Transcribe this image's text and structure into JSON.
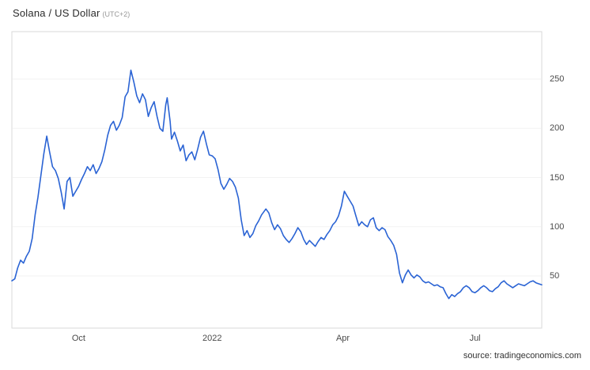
{
  "header": {
    "title": "Solana / US Dollar",
    "timezone": "(UTC+2)"
  },
  "footer": {
    "source": "source: tradingeconomics.com"
  },
  "chart_data": {
    "type": "line",
    "title": "Solana / US Dollar",
    "series_name": "Solana / US Dollar",
    "x_range": [
      "2021-08-16",
      "2022-08-16"
    ],
    "ylim": [
      0,
      300
    ],
    "yticks": [
      50,
      100,
      150,
      200,
      250
    ],
    "xticks": [
      {
        "label": "Oct",
        "date": "2021-10-01"
      },
      {
        "label": "2022",
        "date": "2022-01-01"
      },
      {
        "label": "Apr",
        "date": "2022-04-01"
      },
      {
        "label": "Jul",
        "date": "2022-07-01"
      }
    ],
    "grid": true,
    "legend": "none",
    "colors": {
      "line": "#2a63d4",
      "border": "#d9d9d9",
      "grid": "#f2f2f2",
      "axis_text": "#4a4a4a"
    },
    "dates": [
      "2021-08-16",
      "2021-08-18",
      "2021-08-20",
      "2021-08-22",
      "2021-08-24",
      "2021-08-26",
      "2021-08-28",
      "2021-08-30",
      "2021-09-01",
      "2021-09-03",
      "2021-09-05",
      "2021-09-07",
      "2021-09-09",
      "2021-09-11",
      "2021-09-13",
      "2021-09-15",
      "2021-09-17",
      "2021-09-19",
      "2021-09-21",
      "2021-09-23",
      "2021-09-25",
      "2021-09-27",
      "2021-09-29",
      "2021-10-01",
      "2021-10-03",
      "2021-10-05",
      "2021-10-07",
      "2021-10-09",
      "2021-10-11",
      "2021-10-13",
      "2021-10-15",
      "2021-10-17",
      "2021-10-19",
      "2021-10-21",
      "2021-10-23",
      "2021-10-25",
      "2021-10-27",
      "2021-10-29",
      "2021-10-31",
      "2021-11-02",
      "2021-11-04",
      "2021-11-06",
      "2021-11-08",
      "2021-11-10",
      "2021-11-12",
      "2021-11-14",
      "2021-11-16",
      "2021-11-18",
      "2021-11-20",
      "2021-11-22",
      "2021-11-24",
      "2021-11-26",
      "2021-11-28",
      "2021-11-30",
      "2021-12-01",
      "2021-12-03",
      "2021-12-04",
      "2021-12-06",
      "2021-12-08",
      "2021-12-10",
      "2021-12-12",
      "2021-12-14",
      "2021-12-16",
      "2021-12-18",
      "2021-12-20",
      "2021-12-22",
      "2021-12-24",
      "2021-12-26",
      "2021-12-28",
      "2021-12-30",
      "2022-01-01",
      "2022-01-03",
      "2022-01-05",
      "2022-01-07",
      "2022-01-09",
      "2022-01-11",
      "2022-01-13",
      "2022-01-15",
      "2022-01-17",
      "2022-01-19",
      "2022-01-21",
      "2022-01-23",
      "2022-01-25",
      "2022-01-27",
      "2022-01-29",
      "2022-01-31",
      "2022-02-02",
      "2022-02-04",
      "2022-02-07",
      "2022-02-09",
      "2022-02-11",
      "2022-02-13",
      "2022-02-15",
      "2022-02-17",
      "2022-02-19",
      "2022-02-21",
      "2022-02-23",
      "2022-02-25",
      "2022-02-27",
      "2022-03-01",
      "2022-03-03",
      "2022-03-05",
      "2022-03-07",
      "2022-03-09",
      "2022-03-11",
      "2022-03-13",
      "2022-03-15",
      "2022-03-17",
      "2022-03-19",
      "2022-03-21",
      "2022-03-23",
      "2022-03-25",
      "2022-03-27",
      "2022-03-29",
      "2022-03-31",
      "2022-04-02",
      "2022-04-04",
      "2022-04-06",
      "2022-04-08",
      "2022-04-10",
      "2022-04-12",
      "2022-04-14",
      "2022-04-16",
      "2022-04-18",
      "2022-04-20",
      "2022-04-22",
      "2022-04-24",
      "2022-04-26",
      "2022-04-28",
      "2022-04-30",
      "2022-05-02",
      "2022-05-04",
      "2022-05-06",
      "2022-05-08",
      "2022-05-10",
      "2022-05-12",
      "2022-05-14",
      "2022-05-16",
      "2022-05-18",
      "2022-05-20",
      "2022-05-22",
      "2022-05-24",
      "2022-05-26",
      "2022-05-28",
      "2022-05-30",
      "2022-06-01",
      "2022-06-03",
      "2022-06-05",
      "2022-06-07",
      "2022-06-09",
      "2022-06-11",
      "2022-06-13",
      "2022-06-15",
      "2022-06-17",
      "2022-06-19",
      "2022-06-21",
      "2022-06-23",
      "2022-06-25",
      "2022-06-27",
      "2022-06-29",
      "2022-07-01",
      "2022-07-03",
      "2022-07-05",
      "2022-07-07",
      "2022-07-09",
      "2022-07-11",
      "2022-07-13",
      "2022-07-15",
      "2022-07-17",
      "2022-07-19",
      "2022-07-21",
      "2022-07-23",
      "2022-07-25",
      "2022-07-27",
      "2022-07-29",
      "2022-07-31",
      "2022-08-02",
      "2022-08-04",
      "2022-08-06",
      "2022-08-08",
      "2022-08-10",
      "2022-08-12",
      "2022-08-14",
      "2022-08-16"
    ],
    "values": [
      45,
      47,
      58,
      66,
      63,
      70,
      75,
      88,
      112,
      130,
      152,
      174,
      192,
      176,
      161,
      157,
      149,
      135,
      118,
      146,
      150,
      131,
      136,
      141,
      148,
      154,
      161,
      157,
      163,
      154,
      159,
      166,
      178,
      193,
      203,
      207,
      198,
      203,
      211,
      232,
      237,
      259,
      247,
      233,
      226,
      235,
      229,
      212,
      221,
      227,
      212,
      200,
      197,
      224,
      231,
      207,
      189,
      196,
      187,
      177,
      183,
      167,
      173,
      176,
      168,
      179,
      191,
      197,
      184,
      173,
      172,
      169,
      158,
      144,
      138,
      143,
      149,
      146,
      140,
      129,
      107,
      91,
      96,
      89,
      93,
      101,
      106,
      112,
      118,
      114,
      104,
      97,
      102,
      98,
      91,
      87,
      84,
      88,
      93,
      99,
      95,
      87,
      82,
      86,
      83,
      80,
      85,
      89,
      87,
      92,
      96,
      102,
      105,
      111,
      121,
      136,
      131,
      126,
      121,
      111,
      101,
      105,
      102,
      100,
      107,
      109,
      99,
      96,
      99,
      97,
      90,
      86,
      81,
      72,
      53,
      43,
      51,
      56,
      51,
      48,
      51,
      49,
      45,
      43,
      44,
      42,
      40,
      41,
      39,
      38,
      32,
      27,
      31,
      29,
      32,
      34,
      38,
      40,
      38,
      34,
      33,
      35,
      38,
      40,
      38,
      35,
      34,
      37,
      39,
      43,
      45,
      42,
      40,
      38,
      40,
      42,
      41,
      40,
      42,
      44,
      45,
      43,
      42,
      41
    ]
  }
}
